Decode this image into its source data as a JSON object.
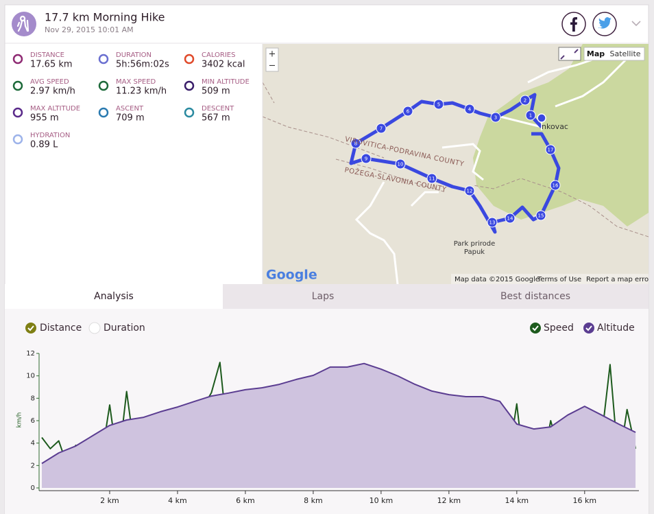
{
  "header": {
    "title": "17.7 km Morning Hike",
    "date": "Nov 29, 2015 10:01 AM"
  },
  "stats": [
    {
      "label": "DISTANCE",
      "value": "17.65 km"
    },
    {
      "label": "DURATION",
      "value": "5h:56m:02s"
    },
    {
      "label": "CALORIES",
      "value": "3402 kcal"
    },
    {
      "label": "AVG SPEED",
      "value": "2.97 km/h"
    },
    {
      "label": "MAX SPEED",
      "value": "11.23 km/h"
    },
    {
      "label": "MIN ALTITUDE",
      "value": "509 m"
    },
    {
      "label": "MAX ALTITUDE",
      "value": "955 m"
    },
    {
      "label": "ASCENT",
      "value": "709 m"
    },
    {
      "label": "DESCENT",
      "value": "567 m"
    },
    {
      "label": "HYDRATION",
      "value": "0.89 L"
    }
  ],
  "map": {
    "zoom": [
      "+",
      "−"
    ],
    "map_types": [
      "Map",
      "Satellite"
    ],
    "labels": [
      "VIROVITICA-PODRAVINA COUNTY",
      "POŽEGA-SLAVONIA COUNTY",
      "Park prirode",
      "Papuk",
      "nkovac"
    ],
    "markers": [
      "1",
      "2",
      "3",
      "4",
      "5",
      "6",
      "7",
      "8",
      "9",
      "10",
      "11",
      "12",
      "13",
      "14",
      "15",
      "16",
      "17"
    ],
    "logo": "Google",
    "footer": [
      "Map data ©2015 Google",
      "Terms of Use",
      "Report a map error"
    ]
  },
  "tabs": [
    "Analysis",
    "Laps",
    "Best distances"
  ],
  "x_toggles": [
    "Distance",
    "Duration"
  ],
  "chart_data": {
    "type": "line",
    "y_label": "km/h",
    "xlim": [
      0,
      17.6
    ],
    "ylim": [
      0,
      12
    ],
    "y2lim": [
      400,
      1000
    ],
    "xticks": [
      {
        "value": 2,
        "label": "2 km"
      },
      {
        "value": 4,
        "label": "4 km"
      },
      {
        "value": 6,
        "label": "6 km"
      },
      {
        "value": 8,
        "label": "8 km"
      },
      {
        "value": 10,
        "label": "10 km"
      },
      {
        "value": 12,
        "label": "12 km"
      },
      {
        "value": 14,
        "label": "14 km"
      },
      {
        "value": 16,
        "label": "16 km"
      }
    ],
    "yticks": [
      0,
      2,
      4,
      6,
      8,
      10,
      12
    ],
    "series": [
      {
        "name": "Speed",
        "color": "#1d5a1d",
        "x": [
          0,
          0.25,
          0.5,
          0.75,
          1,
          1.25,
          1.5,
          1.75,
          2,
          2.25,
          2.5,
          2.75,
          3,
          3.25,
          3.5,
          3.75,
          4,
          4.25,
          4.5,
          4.75,
          5,
          5.25,
          5.5,
          5.75,
          6,
          6.25,
          6.5,
          6.75,
          7,
          7.25,
          7.5,
          7.75,
          8,
          8.25,
          8.5,
          8.75,
          9,
          9.25,
          9.5,
          9.75,
          10,
          10.25,
          10.5,
          10.75,
          11,
          11.25,
          11.5,
          11.75,
          12,
          12.25,
          12.5,
          12.75,
          13,
          13.25,
          13.5,
          13.75,
          14,
          14.25,
          14.5,
          14.75,
          15,
          15.25,
          15.5,
          15.75,
          16,
          16.25,
          16.5,
          16.75,
          17,
          17.25,
          17.5
        ],
        "values": [
          4.5,
          3.5,
          4.2,
          2.0,
          3.8,
          1.2,
          3.0,
          2.5,
          7.4,
          2.0,
          8.6,
          3.0,
          6.2,
          0.8,
          5.5,
          1.5,
          3.5,
          2.2,
          0.7,
          7.2,
          8.5,
          11.2,
          3.8,
          2.3,
          3.2,
          1.0,
          8.4,
          6.5,
          3.0,
          7.8,
          1.5,
          4.0,
          7.0,
          2.0,
          5.0,
          1.5,
          6.5,
          0.6,
          5.2,
          2.0,
          6.2,
          0.7,
          6.8,
          1.2,
          4.5,
          7.5,
          3.0,
          1.0,
          4.0,
          0.8,
          5.5,
          3.0,
          6.2,
          1.5,
          4.5,
          2.5,
          7.5,
          1.0,
          3.5,
          2.0,
          6.0,
          3.2,
          4.0,
          2.0,
          7.0,
          3.5,
          4.5,
          11.0,
          2.0,
          7.0,
          3.5
        ]
      },
      {
        "name": "Altitude",
        "color": "#5b3d91",
        "fill": "#cfc3df",
        "axis": "y2",
        "x": [
          0,
          0.5,
          1,
          1.5,
          2,
          2.5,
          3,
          3.5,
          4,
          4.5,
          5,
          5.5,
          6,
          6.5,
          7,
          7.5,
          8,
          8.5,
          9,
          9.5,
          10,
          10.5,
          11,
          11.5,
          12,
          12.5,
          13,
          13.5,
          14,
          14.5,
          15,
          15.5,
          16,
          16.5,
          17,
          17.5
        ],
        "values": [
          509,
          556,
          587,
          633,
          679,
          703,
          715,
          740,
          761,
          786,
          810,
          823,
          838,
          847,
          862,
          884,
          902,
          939,
          939,
          955,
          930,
          899,
          862,
          832,
          816,
          807,
          807,
          786,
          685,
          663,
          672,
          725,
          764,
          725,
          685,
          648
        ]
      }
    ]
  }
}
